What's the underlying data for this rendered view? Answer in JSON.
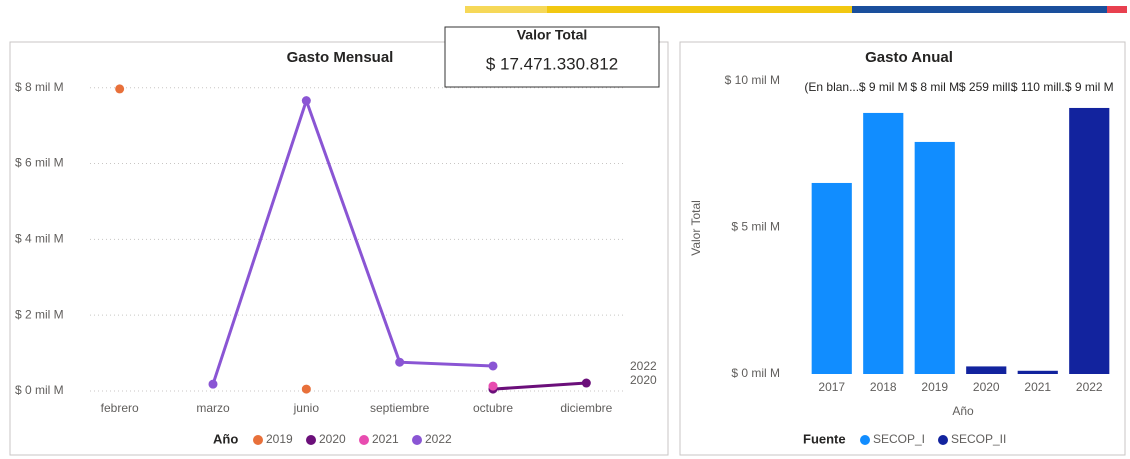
{
  "card": {
    "title": "Valor Total",
    "value": "$ 17.471.330.812"
  },
  "chart_data": [
    {
      "type": "line",
      "title": "Gasto Mensual",
      "categories": [
        "febrero",
        "marzo",
        "junio",
        "septiembre",
        "octubre",
        "diciembre"
      ],
      "ylim": [
        0,
        8.6
      ],
      "yticks": [
        {
          "value": 0,
          "label": "$ 0 mil M"
        },
        {
          "value": 2,
          "label": "$ 2 mil M"
        },
        {
          "value": 4,
          "label": "$ 4 mil M"
        },
        {
          "value": 6,
          "label": "$ 6 mil M"
        },
        {
          "value": 8,
          "label": "$ 8 mil M"
        }
      ],
      "grid": true,
      "legend_title": "Año",
      "series": [
        {
          "name": "2019",
          "color": "#e8703a",
          "values": [
            7.97,
            null,
            0.05,
            null,
            null,
            null
          ]
        },
        {
          "name": "2020",
          "color": "#6b0f7a",
          "values": [
            null,
            null,
            null,
            null,
            0.05,
            0.21
          ]
        },
        {
          "name": "2021",
          "color": "#e84cb0",
          "values": [
            null,
            null,
            null,
            null,
            0.13,
            null
          ]
        },
        {
          "name": "2022",
          "color": "#8a55d4",
          "values": [
            null,
            0.18,
            7.66,
            0.76,
            0.66,
            null
          ]
        }
      ]
    },
    {
      "type": "bar",
      "title": "Gasto Anual",
      "categories": [
        "2017",
        "2018",
        "2019",
        "2020",
        "2021",
        "2022"
      ],
      "ylim": [
        0,
        10
      ],
      "yticks": [
        {
          "value": 0,
          "label": "$ 0 mil M"
        },
        {
          "value": 5,
          "label": "$ 5 mil M"
        },
        {
          "value": 10,
          "label": "$ 10 mil M"
        }
      ],
      "ylabel": "Valor Total",
      "xlabel": "Año",
      "legend_title": "Fuente",
      "annotations": [
        "(En blan..."
      ],
      "series": [
        {
          "name": "SECOP_I",
          "color": "#118dff",
          "values": [
            6.52,
            8.91,
            7.92,
            null,
            null,
            null
          ],
          "value_labels": [
            null,
            "$ 9 mil M",
            "$ 8 mil M",
            null,
            null,
            null
          ]
        },
        {
          "name": "SECOP_II",
          "color": "#12239e",
          "values": [
            null,
            null,
            null,
            0.259,
            0.11,
            9.08
          ],
          "value_labels": [
            null,
            null,
            null,
            "$ 259 mill.",
            "$ 110 mill.",
            "$ 9 mil M"
          ]
        }
      ]
    }
  ]
}
